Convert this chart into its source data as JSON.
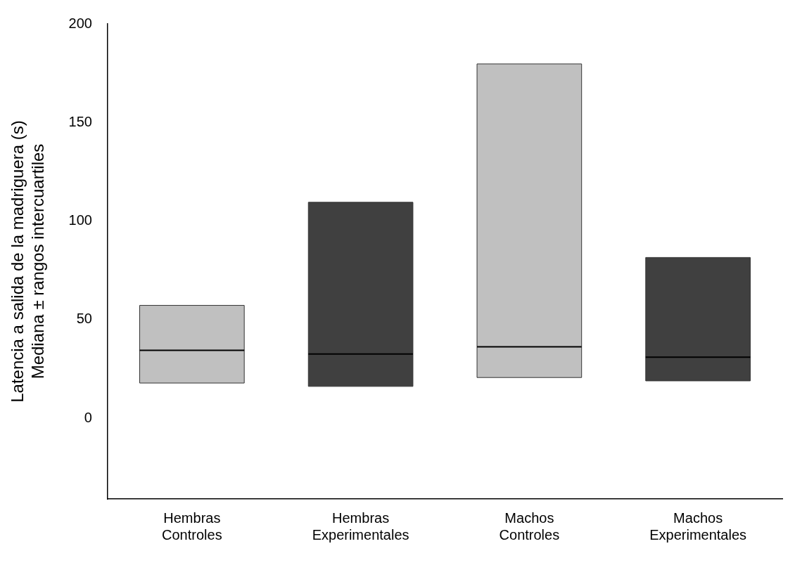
{
  "chart_data": {
    "type": "box",
    "ylabel": "Latencia a salida de la madriguera (s)\nMediana ± rangos intercuartiles",
    "categories": [
      "Hembras Controles",
      "Hembras Experimentales",
      "Machos Controles",
      "Machos Experimentales"
    ],
    "colors": [
      "#c0c0c0",
      "#404040",
      "#c0c0c0",
      "#404040"
    ],
    "boxes": [
      {
        "low": 17.8,
        "q1": 17.8,
        "median": 34.4,
        "q3": 57.2,
        "high": 57.2
      },
      {
        "low": 16.1,
        "q1": 16.1,
        "median": 32.5,
        "q3": 109.5,
        "high": 109.5
      },
      {
        "low": 20.6,
        "q1": 20.6,
        "median": 36.2,
        "q3": 179.7,
        "high": 179.7
      },
      {
        "low": 18.9,
        "q1": 18.9,
        "median": 30.9,
        "q3": 81.5,
        "high": 81.5
      }
    ],
    "ylim": [
      -41,
      200
    ],
    "yticks": [
      0,
      50,
      100,
      150,
      200
    ],
    "grid": false,
    "legend": false
  }
}
